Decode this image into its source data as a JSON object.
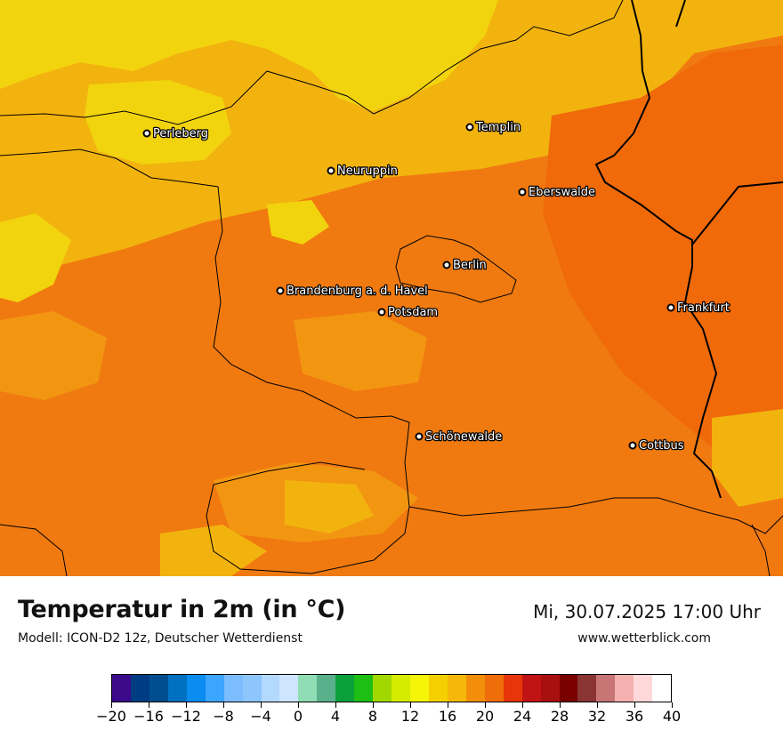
{
  "map": {
    "colors": {
      "base": "#f5a623",
      "warm": "#f07a10",
      "hot": "#f58a12",
      "cool": "#f5c518",
      "cooler": "#f2db0e",
      "boundary": "#000000"
    },
    "cities": [
      {
        "name": "Perleberg"
      },
      {
        "name": "Templin"
      },
      {
        "name": "Neuruppin"
      },
      {
        "name": "Eberswalde"
      },
      {
        "name": "Berlin"
      },
      {
        "name": "Brandenburg a. d. Havel"
      },
      {
        "name": "Potsdam"
      },
      {
        "name": "Frankfurt"
      },
      {
        "name": "Schönewalde"
      },
      {
        "name": "Cottbus"
      }
    ]
  },
  "footer": {
    "title": "Temperatur in 2m (in °C)",
    "subtitle": "Modell: ICON-D2 12z, Deutscher Wetterdienst",
    "datetime": "Mi, 30.07.2025 17:00 Uhr",
    "website": "www.wetterblick.com"
  },
  "legend": {
    "min": -20,
    "max": 40,
    "step": 2,
    "tick_labels": [
      "−20",
      "−16",
      "−12",
      "−8",
      "−4",
      "0",
      "4",
      "8",
      "12",
      "16",
      "20",
      "24",
      "28",
      "32",
      "36",
      "40"
    ],
    "tick_values": [
      -20,
      -16,
      -12,
      -8,
      -4,
      0,
      4,
      8,
      12,
      16,
      20,
      24,
      28,
      32,
      36,
      40
    ],
    "colors": [
      "#3a0a8a",
      "#003c82",
      "#004e8e",
      "#0070c0",
      "#0a8cf0",
      "#3ca5ff",
      "#7bbdff",
      "#8cc6fd",
      "#b3d9ff",
      "#cfe5ff",
      "#8fdcb5",
      "#5ab08a",
      "#0aa03a",
      "#1dbf14",
      "#a2d800",
      "#d5ec00",
      "#f5f50a",
      "#f5d000",
      "#f5b80a",
      "#f28e0a",
      "#f06e0a",
      "#e6360a",
      "#c01414",
      "#a80f0f",
      "#7a0000",
      "#8a3434",
      "#c77575",
      "#f5b0b0",
      "#ffd9d9",
      "#ffffff"
    ]
  }
}
